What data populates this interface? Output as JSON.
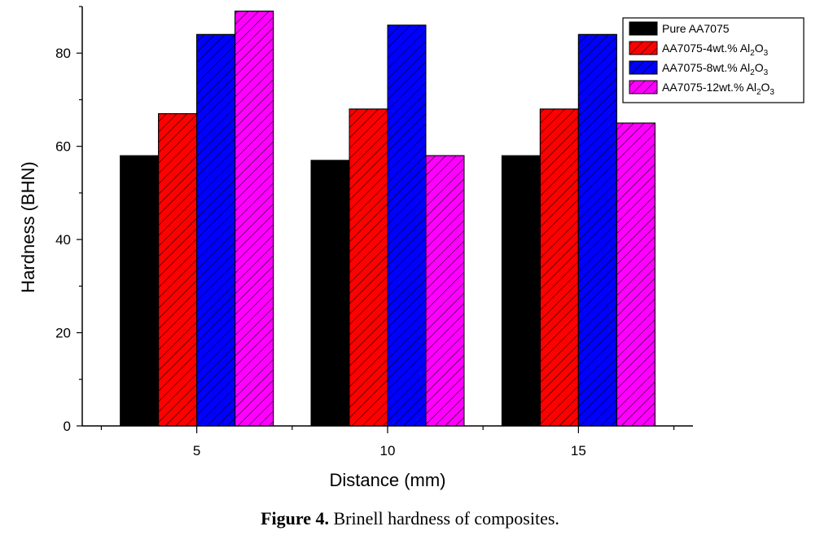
{
  "caption": {
    "label": "Figure 4.",
    "text": "Brinell hardness of composites."
  },
  "chart_data": {
    "type": "bar",
    "xlabel": "Distance (mm)",
    "ylabel": "Hardness (BHN)",
    "ylim": [
      0,
      90
    ],
    "yticks": [
      0,
      20,
      40,
      60,
      80
    ],
    "grid": false,
    "legend_position": "top-right",
    "categories": [
      "5",
      "10",
      "15"
    ],
    "series": [
      {
        "name_main": "Pure AA7075",
        "name_sub2": "",
        "name_mid": "",
        "name_sub3": "",
        "color": "#000000",
        "hatch": false,
        "values": [
          58,
          57,
          58
        ]
      },
      {
        "name_main": "AA7075-4wt.% Al",
        "name_sub2": "2",
        "name_mid": "O",
        "name_sub3": "3",
        "color": "#ff0000",
        "hatch": true,
        "values": [
          67,
          68,
          68
        ]
      },
      {
        "name_main": "AA7075-8wt.% Al",
        "name_sub2": "2",
        "name_mid": "O",
        "name_sub3": "3",
        "color": "#0000ff",
        "hatch": true,
        "values": [
          84,
          86,
          84
        ]
      },
      {
        "name_main": "AA7075-12wt.% Al",
        "name_sub2": "2",
        "name_mid": "O",
        "name_sub3": "3",
        "color": "#ff00ff",
        "hatch": true,
        "values": [
          89,
          58,
          65
        ]
      }
    ]
  }
}
